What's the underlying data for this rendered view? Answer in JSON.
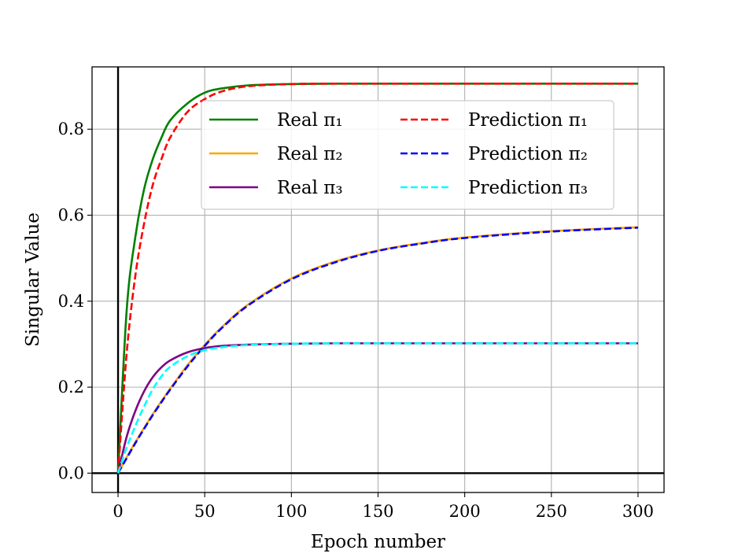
{
  "chart_data": {
    "type": "line",
    "title": "",
    "xlabel": "Epoch number",
    "ylabel": "Singular Value",
    "xlim": [
      -15,
      315
    ],
    "ylim": [
      -0.045,
      0.945
    ],
    "xticks": [
      0,
      50,
      100,
      150,
      200,
      250,
      300
    ],
    "yticks": [
      0.0,
      0.2,
      0.4,
      0.6,
      0.8
    ],
    "xtick_labels": [
      "0",
      "50",
      "100",
      "150",
      "200",
      "250",
      "300"
    ],
    "ytick_labels": [
      "0.0",
      "0.2",
      "0.4",
      "0.6",
      "0.8"
    ],
    "grid": true,
    "legend_position": "upper center",
    "legend_columns": 2,
    "reference_lines": {
      "x": 0,
      "y": 0
    },
    "x": [
      0,
      5,
      10,
      15,
      20,
      25,
      30,
      40,
      50,
      60,
      75,
      100,
      125,
      150,
      175,
      200,
      250,
      300
    ],
    "series": [
      {
        "name": "Real π₁",
        "color": "#008000",
        "style": "solid",
        "values": [
          0.0,
          0.38,
          0.55,
          0.66,
          0.73,
          0.78,
          0.82,
          0.86,
          0.885,
          0.895,
          0.902,
          0.905,
          0.906,
          0.906,
          0.906,
          0.906,
          0.906,
          0.906
        ]
      },
      {
        "name": "Real π₂",
        "color": "#FFA500",
        "style": "solid",
        "values": [
          0.0,
          0.037,
          0.072,
          0.105,
          0.137,
          0.167,
          0.196,
          0.251,
          0.298,
          0.34,
          0.392,
          0.453,
          0.492,
          0.518,
          0.535,
          0.548,
          0.563,
          0.572
        ]
      },
      {
        "name": "Real π₃",
        "color": "#800080",
        "style": "solid",
        "values": [
          0.0,
          0.085,
          0.145,
          0.19,
          0.223,
          0.246,
          0.262,
          0.281,
          0.291,
          0.296,
          0.299,
          0.301,
          0.302,
          0.302,
          0.302,
          0.302,
          0.302,
          0.302
        ]
      },
      {
        "name": "Prediction π₁",
        "color": "#FF0000",
        "style": "dashed",
        "values": [
          0.0,
          0.28,
          0.46,
          0.58,
          0.67,
          0.73,
          0.78,
          0.84,
          0.87,
          0.888,
          0.9,
          0.905,
          0.906,
          0.906,
          0.906,
          0.906,
          0.906,
          0.906
        ]
      },
      {
        "name": "Prediction π₂",
        "color": "#0000FF",
        "style": "dashed",
        "values": [
          0.0,
          0.035,
          0.07,
          0.103,
          0.135,
          0.165,
          0.194,
          0.248,
          0.296,
          0.338,
          0.39,
          0.451,
          0.49,
          0.517,
          0.534,
          0.547,
          0.562,
          0.571
        ]
      },
      {
        "name": "Prediction π₃",
        "color": "#00FFFF",
        "style": "dashed",
        "values": [
          0.0,
          0.06,
          0.11,
          0.155,
          0.195,
          0.225,
          0.247,
          0.272,
          0.286,
          0.293,
          0.298,
          0.301,
          0.302,
          0.302,
          0.302,
          0.302,
          0.302,
          0.302
        ]
      }
    ]
  }
}
